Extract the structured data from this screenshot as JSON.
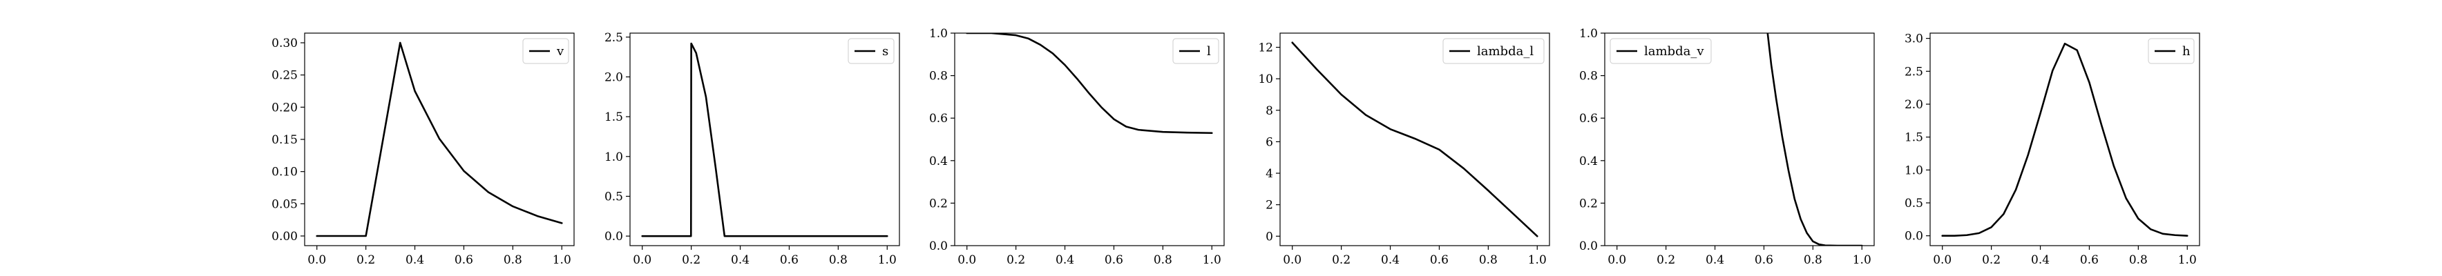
{
  "chart_data": [
    {
      "type": "line",
      "series": [
        {
          "name": "v",
          "color": "#000000",
          "x": [
            0.0,
            0.2,
            0.34,
            0.4,
            0.5,
            0.6,
            0.7,
            0.8,
            0.9,
            1.0
          ],
          "y": [
            0.0,
            0.0,
            0.3,
            0.225,
            0.151,
            0.101,
            0.068,
            0.046,
            0.031,
            0.02
          ]
        }
      ],
      "xlim": [
        -0.05,
        1.05
      ],
      "ylim": [
        -0.015,
        0.315
      ],
      "xticks": [
        0.0,
        0.2,
        0.4,
        0.6,
        0.8,
        1.0
      ],
      "xtick_labels": [
        "0.0",
        "0.2",
        "0.4",
        "0.6",
        "0.8",
        "1.0"
      ],
      "yticks": [
        0.0,
        0.05,
        0.1,
        0.15,
        0.2,
        0.25,
        0.3
      ],
      "ytick_labels": [
        "0.00",
        "0.05",
        "0.10",
        "0.15",
        "0.20",
        "0.25",
        "0.30"
      ],
      "legend": "top-right",
      "grid": false
    },
    {
      "type": "line",
      "series": [
        {
          "name": "s",
          "color": "#000000",
          "x": [
            0.0,
            0.199,
            0.2,
            0.22,
            0.26,
            0.3,
            0.336,
            0.35,
            1.0
          ],
          "y": [
            0.0,
            0.0,
            2.42,
            2.3,
            1.75,
            0.85,
            0.0,
            0.0,
            0.0
          ]
        }
      ],
      "xlim": [
        -0.05,
        1.05
      ],
      "ylim": [
        -0.12,
        2.55
      ],
      "xticks": [
        0.0,
        0.2,
        0.4,
        0.6,
        0.8,
        1.0
      ],
      "xtick_labels": [
        "0.0",
        "0.2",
        "0.4",
        "0.6",
        "0.8",
        "1.0"
      ],
      "yticks": [
        0.0,
        0.5,
        1.0,
        1.5,
        2.0,
        2.5
      ],
      "ytick_labels": [
        "0.0",
        "0.5",
        "1.0",
        "1.5",
        "2.0",
        "2.5"
      ],
      "legend": "top-right",
      "grid": false
    },
    {
      "type": "line",
      "series": [
        {
          "name": "l",
          "color": "#000000",
          "x": [
            0.0,
            0.1,
            0.2,
            0.25,
            0.3,
            0.35,
            0.4,
            0.45,
            0.5,
            0.55,
            0.6,
            0.65,
            0.7,
            0.8,
            0.9,
            1.0
          ],
          "y": [
            1.0,
            1.0,
            0.99,
            0.975,
            0.945,
            0.905,
            0.85,
            0.785,
            0.715,
            0.65,
            0.595,
            0.56,
            0.545,
            0.535,
            0.532,
            0.53
          ]
        }
      ],
      "xlim": [
        -0.05,
        1.05
      ],
      "ylim": [
        0.0,
        1.0
      ],
      "xticks": [
        0.0,
        0.2,
        0.4,
        0.6,
        0.8,
        1.0
      ],
      "xtick_labels": [
        "0.0",
        "0.2",
        "0.4",
        "0.6",
        "0.8",
        "1.0"
      ],
      "yticks": [
        0.0,
        0.2,
        0.4,
        0.6,
        0.8,
        1.0
      ],
      "ytick_labels": [
        "0.0",
        "0.2",
        "0.4",
        "0.6",
        "0.8",
        "1.0"
      ],
      "legend": "top-right",
      "grid": false
    },
    {
      "type": "line",
      "series": [
        {
          "name": "lambda_l",
          "color": "#000000",
          "x": [
            0.0,
            0.1,
            0.2,
            0.3,
            0.4,
            0.5,
            0.6,
            0.7,
            0.8,
            0.9,
            1.0
          ],
          "y": [
            12.3,
            10.6,
            9.0,
            7.7,
            6.8,
            6.2,
            5.5,
            4.3,
            2.9,
            1.45,
            0.0
          ]
        }
      ],
      "xlim": [
        -0.05,
        1.05
      ],
      "ylim": [
        -0.6,
        12.9
      ],
      "xticks": [
        0.0,
        0.2,
        0.4,
        0.6,
        0.8,
        1.0
      ],
      "xtick_labels": [
        "0.0",
        "0.2",
        "0.4",
        "0.6",
        "0.8",
        "1.0"
      ],
      "yticks": [
        0,
        2,
        4,
        6,
        8,
        10,
        12
      ],
      "ytick_labels": [
        "0",
        "2",
        "4",
        "6",
        "8",
        "10",
        "12"
      ],
      "legend": "top-right",
      "grid": false
    },
    {
      "type": "line",
      "series": [
        {
          "name": "lambda_v",
          "color": "#000000",
          "x": [
            0.615,
            0.63,
            0.65,
            0.675,
            0.7,
            0.725,
            0.75,
            0.775,
            0.8,
            0.825,
            0.85,
            0.9,
            1.0
          ],
          "y": [
            1.0,
            0.85,
            0.69,
            0.51,
            0.355,
            0.22,
            0.125,
            0.06,
            0.02,
            0.006,
            0.001,
            0.0,
            0.0
          ]
        }
      ],
      "xlim": [
        -0.05,
        1.05
      ],
      "ylim": [
        0.0,
        1.0
      ],
      "xticks": [
        0.0,
        0.2,
        0.4,
        0.6,
        0.8,
        1.0
      ],
      "xtick_labels": [
        "0.0",
        "0.2",
        "0.4",
        "0.6",
        "0.8",
        "1.0"
      ],
      "yticks": [
        0.0,
        0.2,
        0.4,
        0.6,
        0.8,
        1.0
      ],
      "ytick_labels": [
        "0.0",
        "0.2",
        "0.4",
        "0.6",
        "0.8",
        "1.0"
      ],
      "legend": "top-left",
      "grid": false
    },
    {
      "type": "line",
      "series": [
        {
          "name": "h",
          "color": "#000000",
          "x": [
            0.0,
            0.05,
            0.1,
            0.15,
            0.2,
            0.25,
            0.3,
            0.35,
            0.4,
            0.45,
            0.5,
            0.55,
            0.6,
            0.65,
            0.7,
            0.75,
            0.8,
            0.85,
            0.9,
            0.95,
            1.0
          ],
          "y": [
            0.0,
            0.0,
            0.01,
            0.04,
            0.13,
            0.33,
            0.7,
            1.23,
            1.86,
            2.51,
            2.92,
            2.82,
            2.33,
            1.68,
            1.06,
            0.57,
            0.26,
            0.1,
            0.03,
            0.01,
            0.0
          ]
        }
      ],
      "xlim": [
        -0.05,
        1.05
      ],
      "ylim": [
        -0.15,
        3.08
      ],
      "xticks": [
        0.0,
        0.2,
        0.4,
        0.6,
        0.8,
        1.0
      ],
      "xtick_labels": [
        "0.0",
        "0.2",
        "0.4",
        "0.6",
        "0.8",
        "1.0"
      ],
      "yticks": [
        0.0,
        0.5,
        1.0,
        1.5,
        2.0,
        2.5,
        3.0
      ],
      "ytick_labels": [
        "0.0",
        "0.5",
        "1.0",
        "1.5",
        "2.0",
        "2.5",
        "3.0"
      ],
      "legend": "top-right",
      "grid": false
    }
  ]
}
